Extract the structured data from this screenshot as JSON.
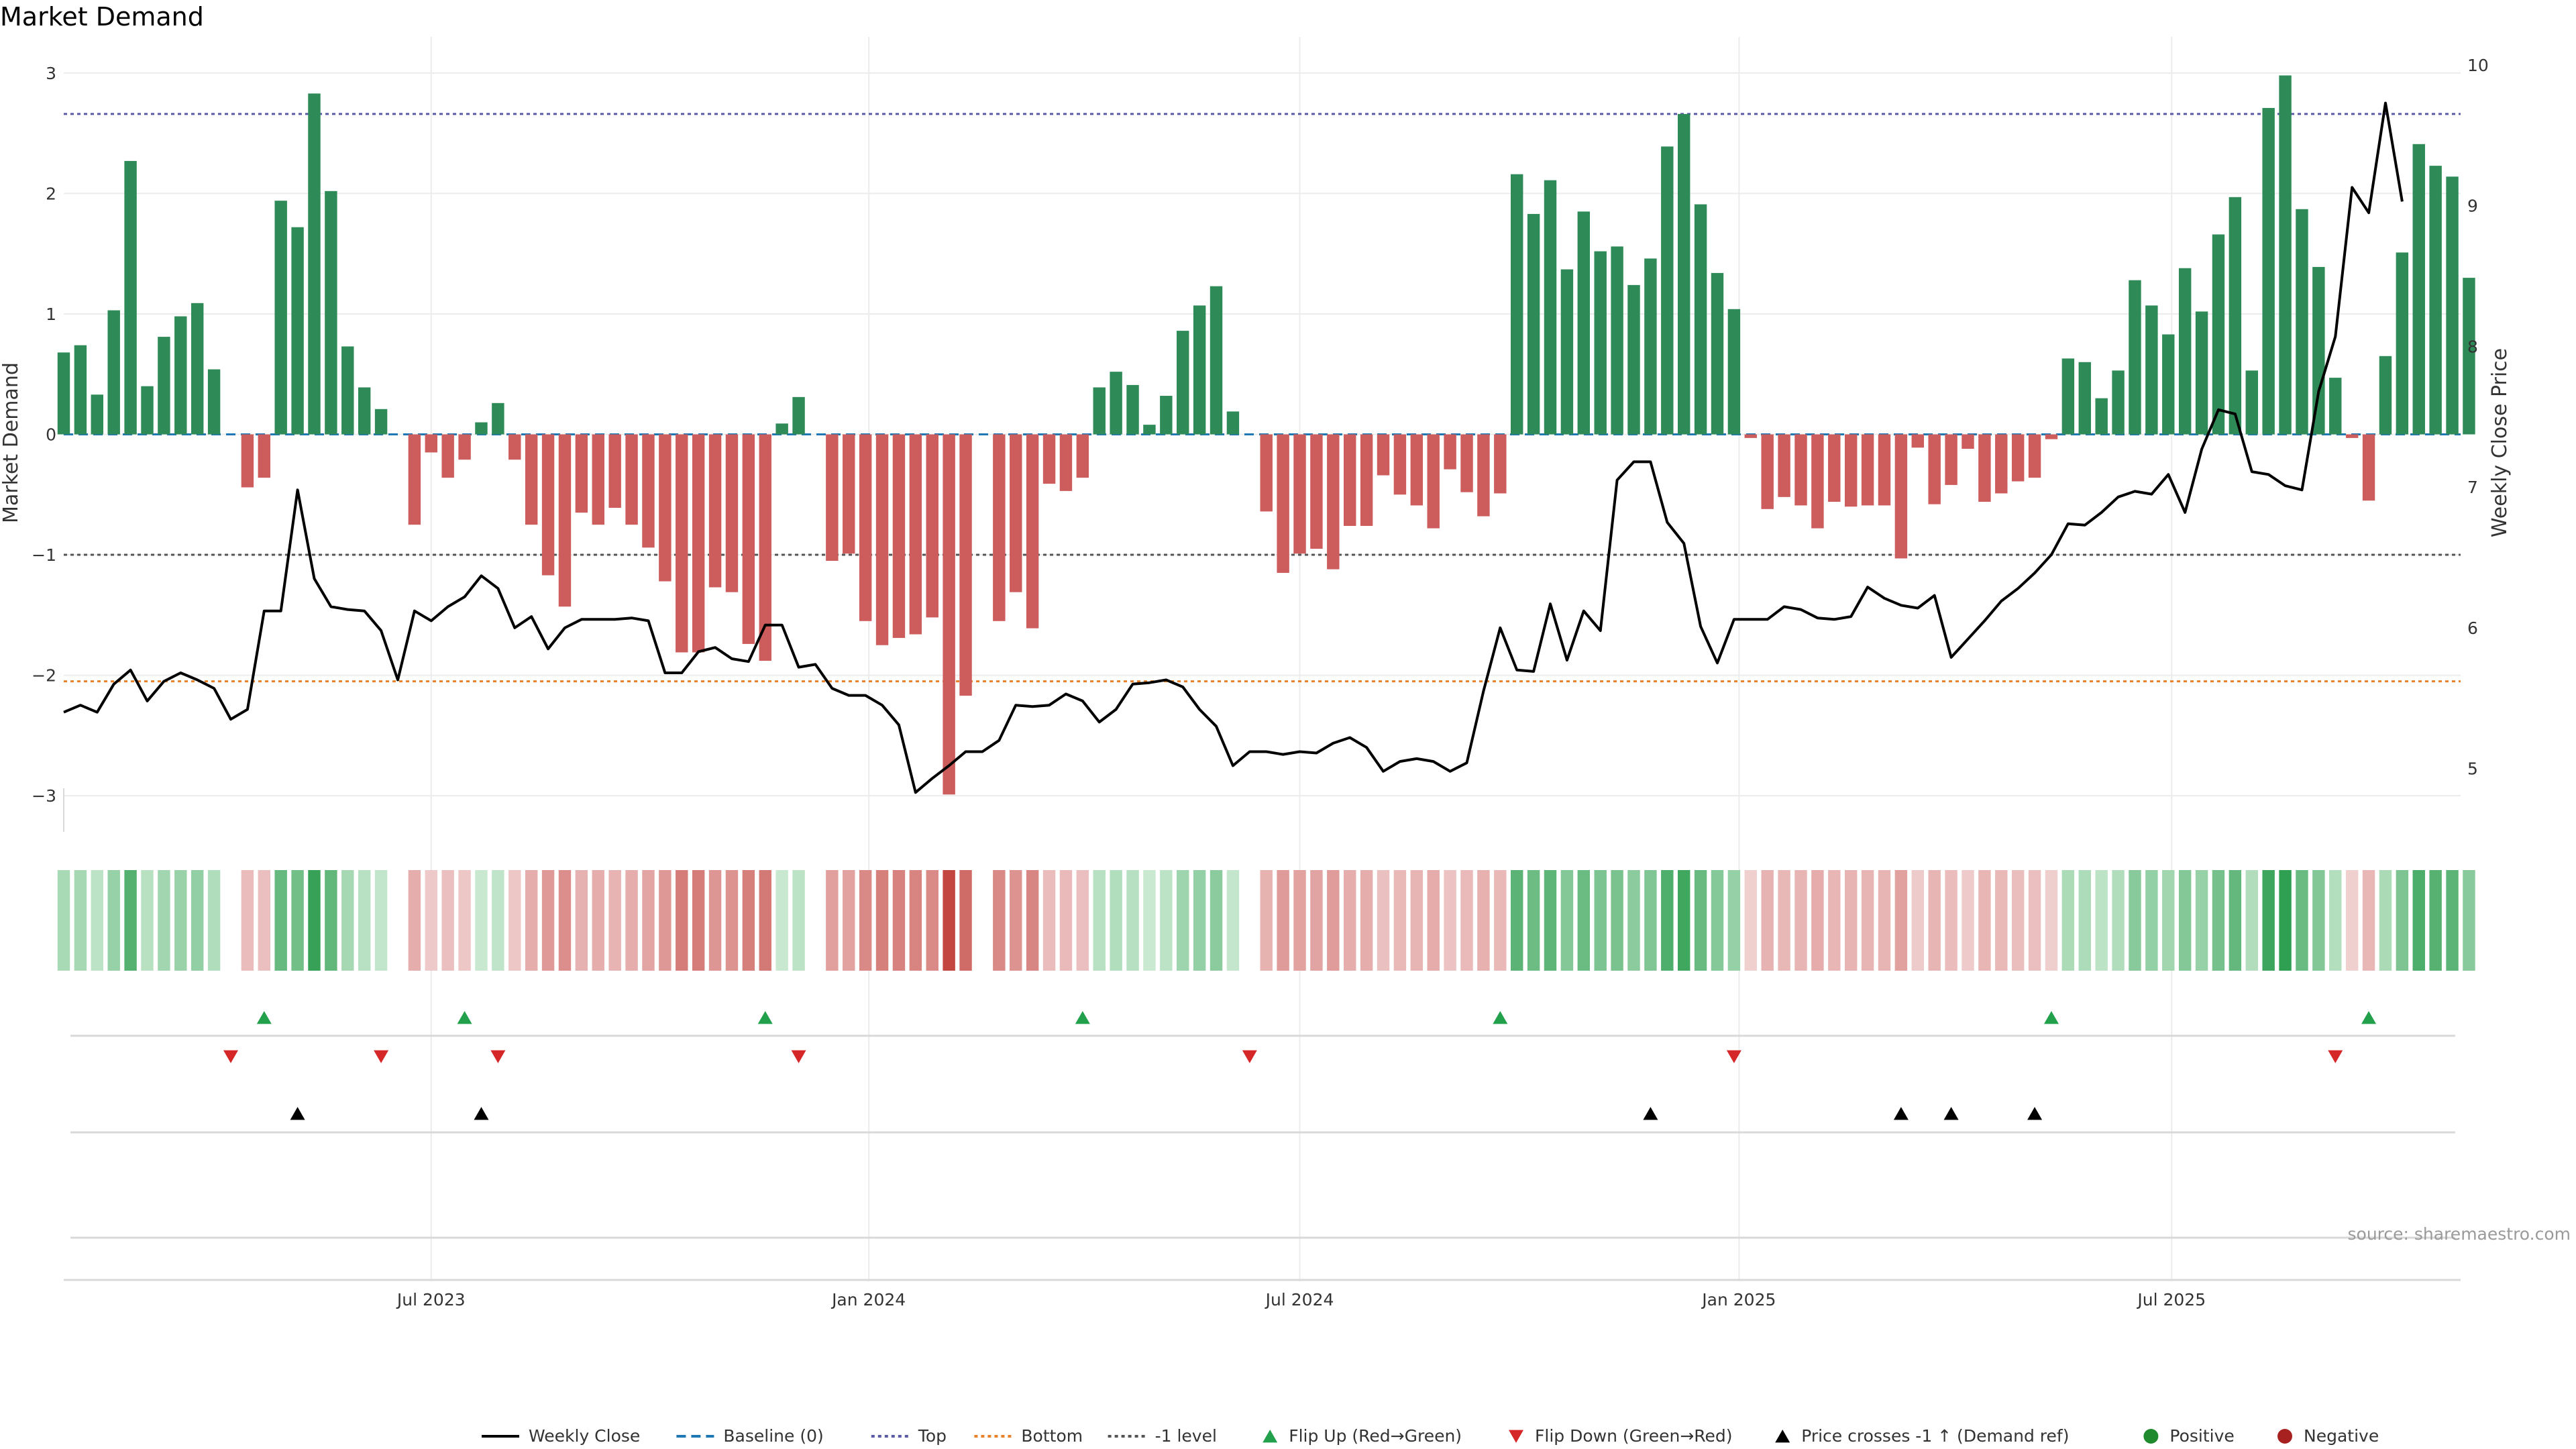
{
  "chart_data": {
    "type": "bar",
    "title": "Market Demand",
    "ylabel": "Market Demand",
    "y2label": "Weekly Close Price",
    "ylim": [
      -3.3,
      3.3
    ],
    "y2lim": [
      4.55,
      10.2
    ],
    "yticks": [
      3,
      2,
      1,
      0,
      -1,
      -2,
      -3
    ],
    "y2ticks": [
      10,
      9,
      8,
      7,
      6,
      5
    ],
    "xlim": [
      0,
      143.5
    ],
    "x_ticks": [
      {
        "label": "Jul 2023",
        "pos": 22
      },
      {
        "label": "Jan 2024",
        "pos": 48.2
      },
      {
        "label": "Jul 2024",
        "pos": 74
      },
      {
        "label": "Jan 2025",
        "pos": 100.3
      },
      {
        "label": "Jul 2025",
        "pos": 126.2
      }
    ],
    "reference_lines": [
      {
        "name": "Baseline (0)",
        "value": 0,
        "color": "#1f77b4",
        "style": "dashed"
      },
      {
        "name": "Top",
        "value": 2.66,
        "color": "#5b5ba6",
        "style": "dotted"
      },
      {
        "name": "Bottom",
        "value": -2.05,
        "color": "#e8822a",
        "style": "dotted"
      },
      {
        "name": "-1 level",
        "value": -1,
        "color": "#555555",
        "style": "dotted"
      }
    ],
    "demand": [
      0.68,
      0.74,
      0.33,
      1.03,
      2.27,
      0.4,
      0.81,
      0.98,
      1.09,
      0.54,
      0,
      -0.44,
      -0.36,
      1.94,
      1.72,
      2.83,
      2.02,
      0.73,
      0.39,
      0.21,
      0,
      -0.75,
      -0.15,
      -0.36,
      -0.21,
      0.1,
      0.26,
      -0.21,
      -0.75,
      -1.17,
      -1.43,
      -0.65,
      -0.75,
      -0.61,
      -0.75,
      -0.94,
      -1.22,
      -1.81,
      -1.81,
      -1.27,
      -1.31,
      -1.74,
      -1.88,
      0.09,
      0.31,
      0,
      -1.05,
      -0.99,
      -1.55,
      -1.75,
      -1.69,
      -1.66,
      -1.52,
      -2.99,
      -2.17,
      0,
      -1.55,
      -1.31,
      -1.61,
      -0.41,
      -0.47,
      -0.36,
      0.39,
      0.52,
      0.41,
      0.08,
      0.32,
      0.86,
      1.07,
      1.23,
      0.19,
      0,
      -0.64,
      -1.15,
      -0.99,
      -0.95,
      -1.12,
      -0.76,
      -0.76,
      -0.34,
      -0.5,
      -0.59,
      -0.78,
      -0.29,
      -0.48,
      -0.68,
      -0.49,
      2.16,
      1.83,
      2.11,
      1.37,
      1.85,
      1.52,
      1.56,
      1.24,
      1.46,
      2.39,
      2.66,
      1.91,
      1.34,
      1.04,
      -0.03,
      -0.62,
      -0.52,
      -0.59,
      -0.78,
      -0.56,
      -0.6,
      -0.59,
      -0.59,
      -1.03,
      -0.11,
      -0.58,
      -0.42,
      -0.12,
      -0.56,
      -0.49,
      -0.39,
      -0.36,
      -0.04,
      0.63,
      0.6,
      0.3,
      0.53,
      1.28,
      1.07,
      0.83,
      1.38,
      1.02,
      1.66,
      1.97,
      0.53,
      2.71,
      2.98,
      1.87,
      1.39,
      0.47,
      -0.03,
      -0.55,
      0.65,
      1.51,
      2.41,
      2.23,
      2.14,
      1.3
    ],
    "price": [
      5.4,
      5.45,
      5.4,
      5.6,
      5.7,
      5.48,
      5.62,
      5.68,
      5.63,
      5.57,
      5.35,
      5.42,
      6.12,
      6.12,
      6.98,
      6.35,
      6.15,
      6.13,
      6.12,
      5.98,
      5.63,
      6.12,
      6.05,
      6.15,
      6.22,
      6.37,
      6.28,
      6.0,
      6.08,
      5.85,
      6.0,
      6.06,
      6.06,
      6.06,
      6.07,
      6.05,
      5.68,
      5.68,
      5.83,
      5.86,
      5.78,
      5.76,
      6.02,
      6.02,
      5.72,
      5.74,
      5.57,
      5.52,
      5.52,
      5.45,
      5.31,
      4.83,
      4.93,
      5.02,
      5.12,
      5.12,
      5.2,
      5.45,
      5.44,
      5.45,
      5.53,
      5.48,
      5.33,
      5.42,
      5.6,
      5.61,
      5.63,
      5.58,
      5.42,
      5.3,
      5.02,
      5.12,
      5.12,
      5.1,
      5.12,
      5.11,
      5.18,
      5.22,
      5.15,
      4.98,
      5.05,
      5.07,
      5.05,
      4.98,
      5.04,
      5.55,
      6.0,
      5.7,
      5.69,
      6.17,
      5.77,
      6.12,
      5.98,
      7.05,
      7.18,
      7.18,
      6.75,
      6.6,
      6.01,
      5.75,
      6.06,
      6.06,
      6.06,
      6.15,
      6.13,
      6.07,
      6.06,
      6.08,
      6.29,
      6.21,
      6.16,
      6.14,
      6.23,
      5.79,
      5.92,
      6.05,
      6.19,
      6.28,
      6.39,
      6.52,
      6.74,
      6.73,
      6.82,
      6.93,
      6.97,
      6.95,
      7.09,
      6.82,
      7.27,
      7.55,
      7.52,
      7.11,
      7.09,
      7.01,
      6.98,
      7.68,
      8.07,
      9.13,
      8.95,
      9.73,
      9.03
    ],
    "flip_up": [
      12,
      24,
      42,
      61,
      86,
      119,
      138
    ],
    "flip_down": [
      10,
      19,
      26,
      44,
      71,
      100,
      136
    ],
    "price_cross": [
      14,
      25,
      95,
      110,
      113,
      118
    ],
    "legend": [
      {
        "label": "Weekly Close",
        "marker": "line-solid",
        "color": "#000000"
      },
      {
        "label": "Baseline (0)",
        "marker": "line-dashed",
        "color": "#1f77b4"
      },
      {
        "label": "Top",
        "marker": "line-dotted",
        "color": "#5b5ba6"
      },
      {
        "label": "Bottom",
        "marker": "line-dotted",
        "color": "#e8822a"
      },
      {
        "label": "-1 level",
        "marker": "line-dotted",
        "color": "#555555"
      },
      {
        "label": "Flip Up (Red→Green)",
        "marker": "triangle-up",
        "color": "#22a04b"
      },
      {
        "label": "Flip Down (Green→Red)",
        "marker": "triangle-down",
        "color": "#d62728"
      },
      {
        "label": "Price crosses -1 ↑ (Demand ref)",
        "marker": "triangle-up",
        "color": "#000000"
      },
      {
        "label": "Positive",
        "marker": "circle",
        "color": "#1f8a2e"
      },
      {
        "label": "Negative",
        "marker": "circle",
        "color": "#a82121"
      }
    ],
    "legend_position": "bottom-center",
    "grid": true,
    "source": "source: sharemaestro.com"
  },
  "colors": {
    "positive": "#2e8b57",
    "negative": "#cd5c5c",
    "price_line": "#000000"
  }
}
